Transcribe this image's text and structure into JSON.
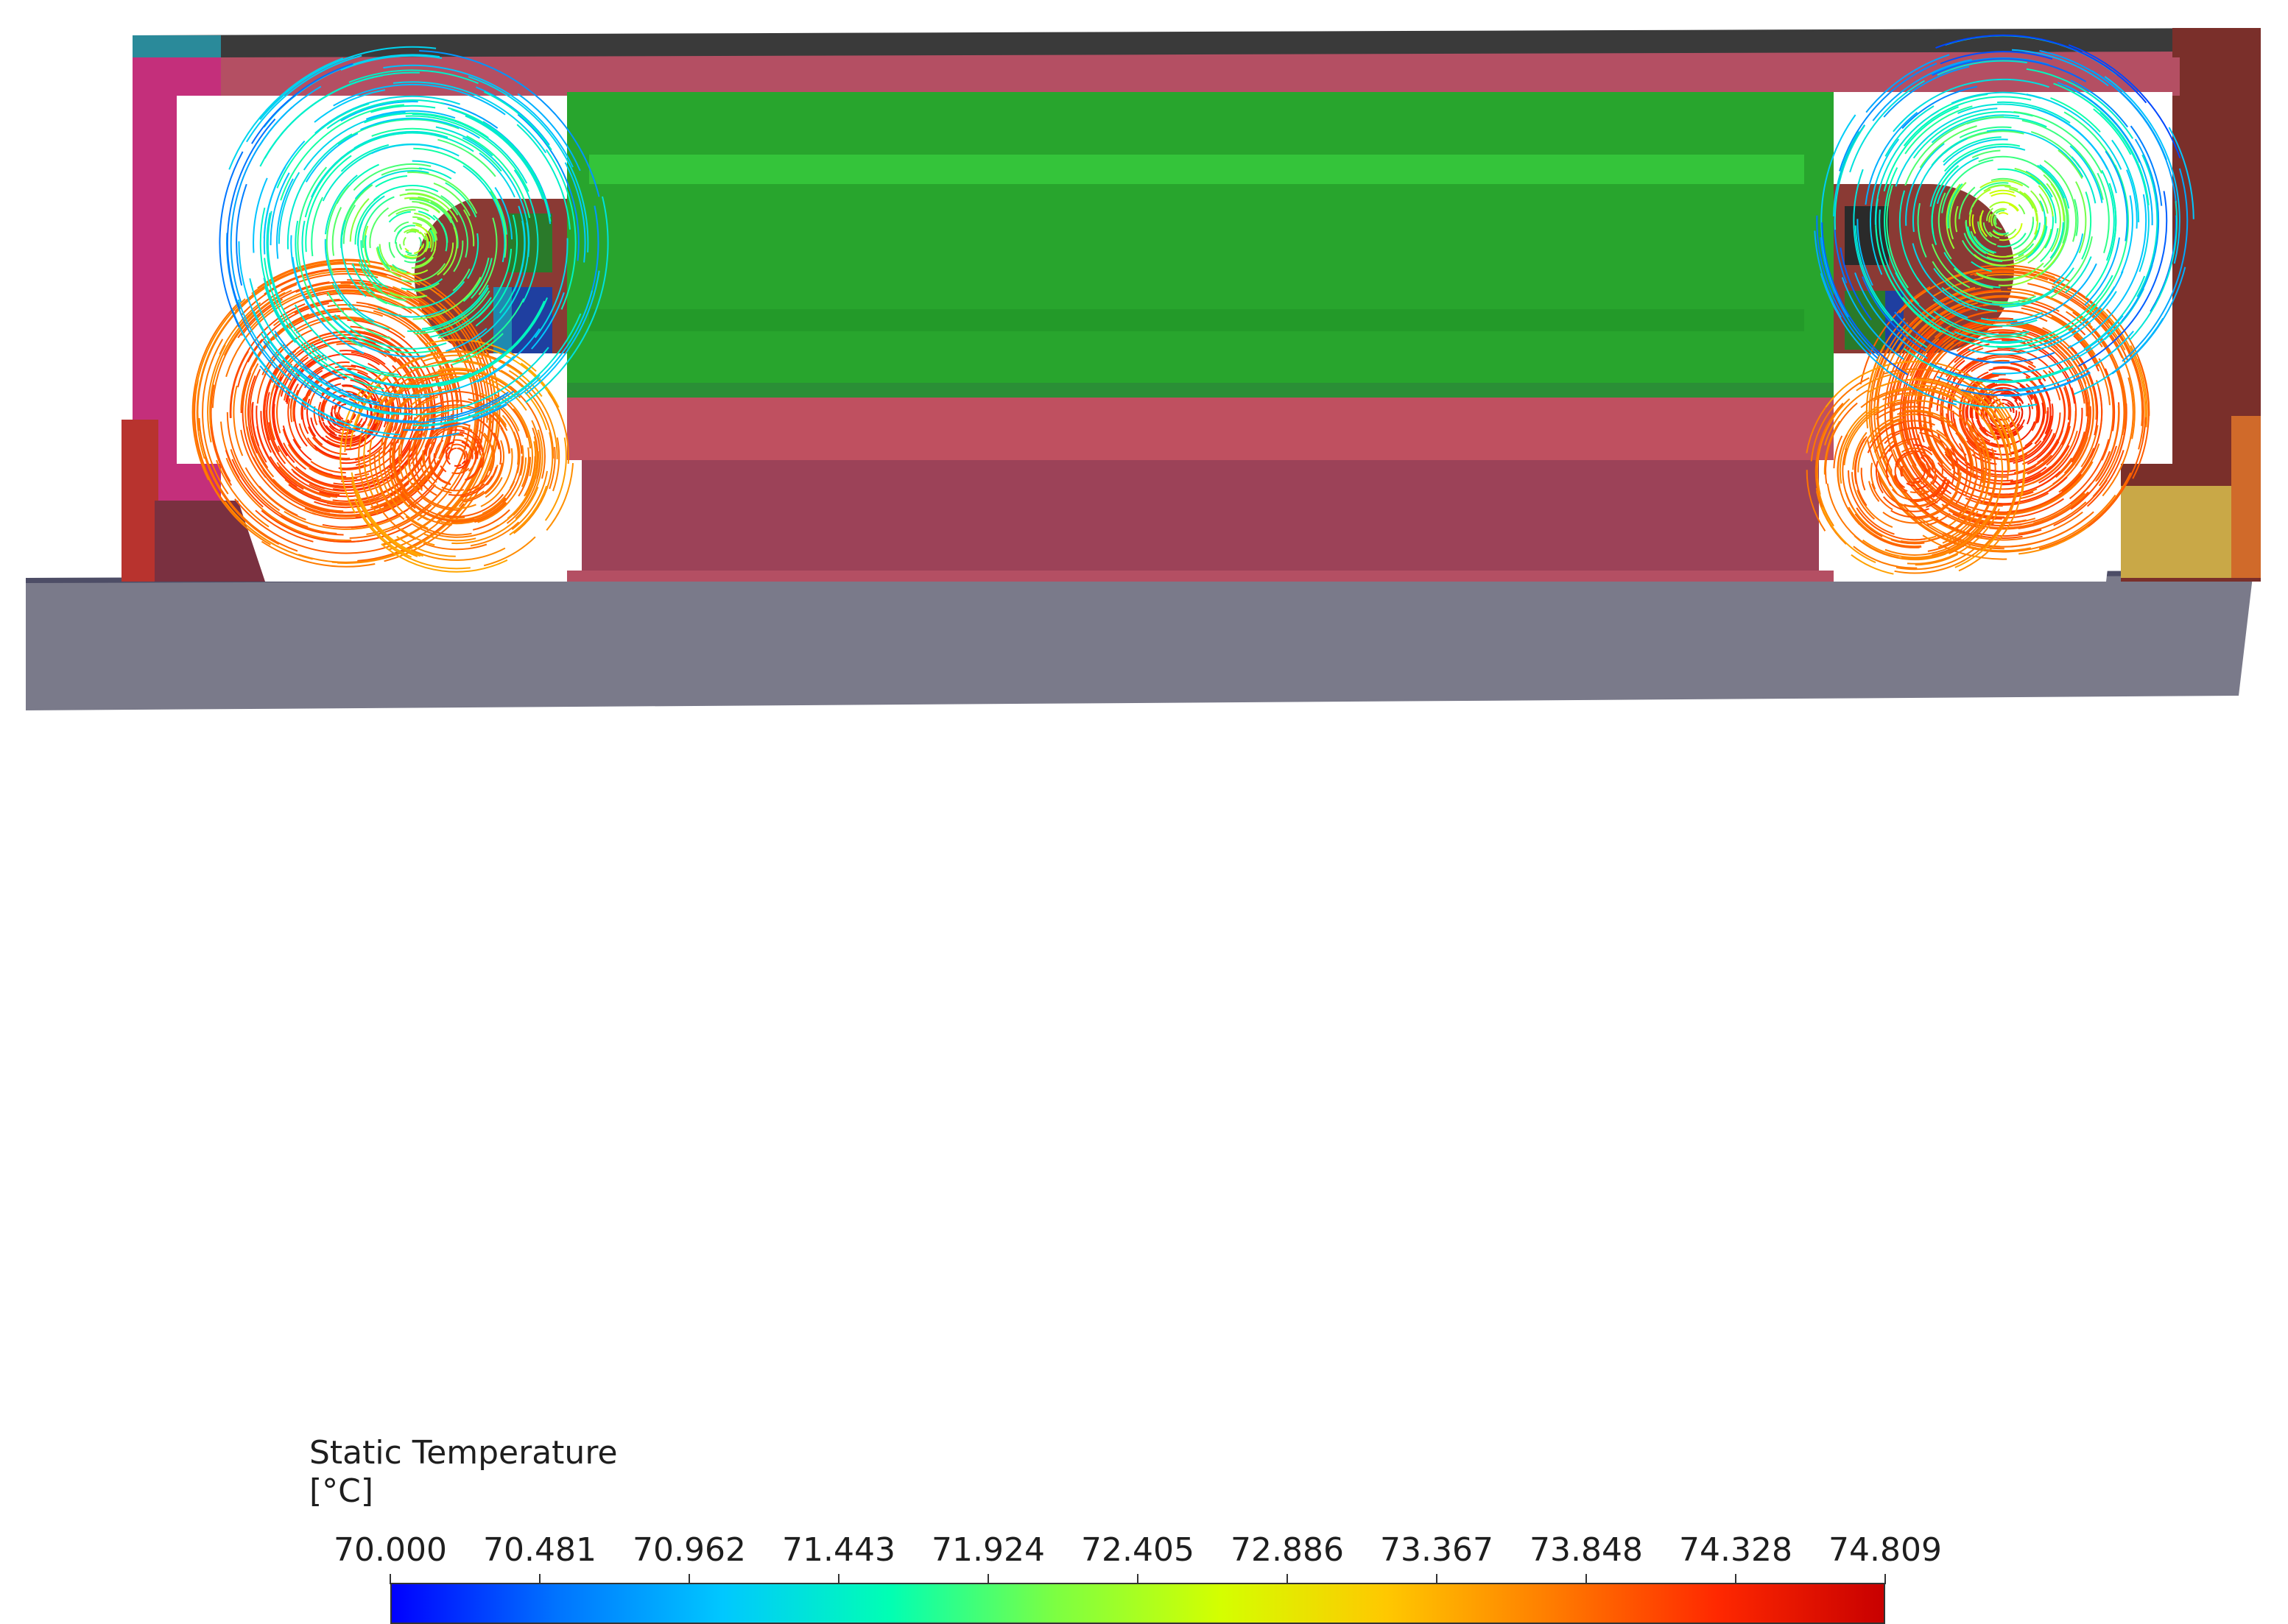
{
  "legend": {
    "title": "Static Temperature",
    "unit": "[°C]",
    "min": 70.0,
    "max": 74.809,
    "ticks": [
      "70.000",
      "70.481",
      "70.962",
      "71.443",
      "71.924",
      "72.405",
      "72.886",
      "73.367",
      "73.848",
      "74.328",
      "74.809"
    ],
    "colormap": [
      "#0000ff",
      "#0074ff",
      "#00c8ff",
      "#00ffb4",
      "#7cff42",
      "#d4ff00",
      "#ffc800",
      "#ff7c00",
      "#ff2800",
      "#c80000"
    ]
  },
  "scene": {
    "colors": {
      "housing": "#b44f63",
      "housing_dark": "#8f3c55",
      "housing_top": "#3a3a3a",
      "end_cap_left": "#c42f7b",
      "end_cap_right": "#7a2f2a",
      "core": "#28a52d",
      "core_light": "#34c43a",
      "base": "#7a7a8a",
      "winding": "#8a3a34"
    }
  }
}
